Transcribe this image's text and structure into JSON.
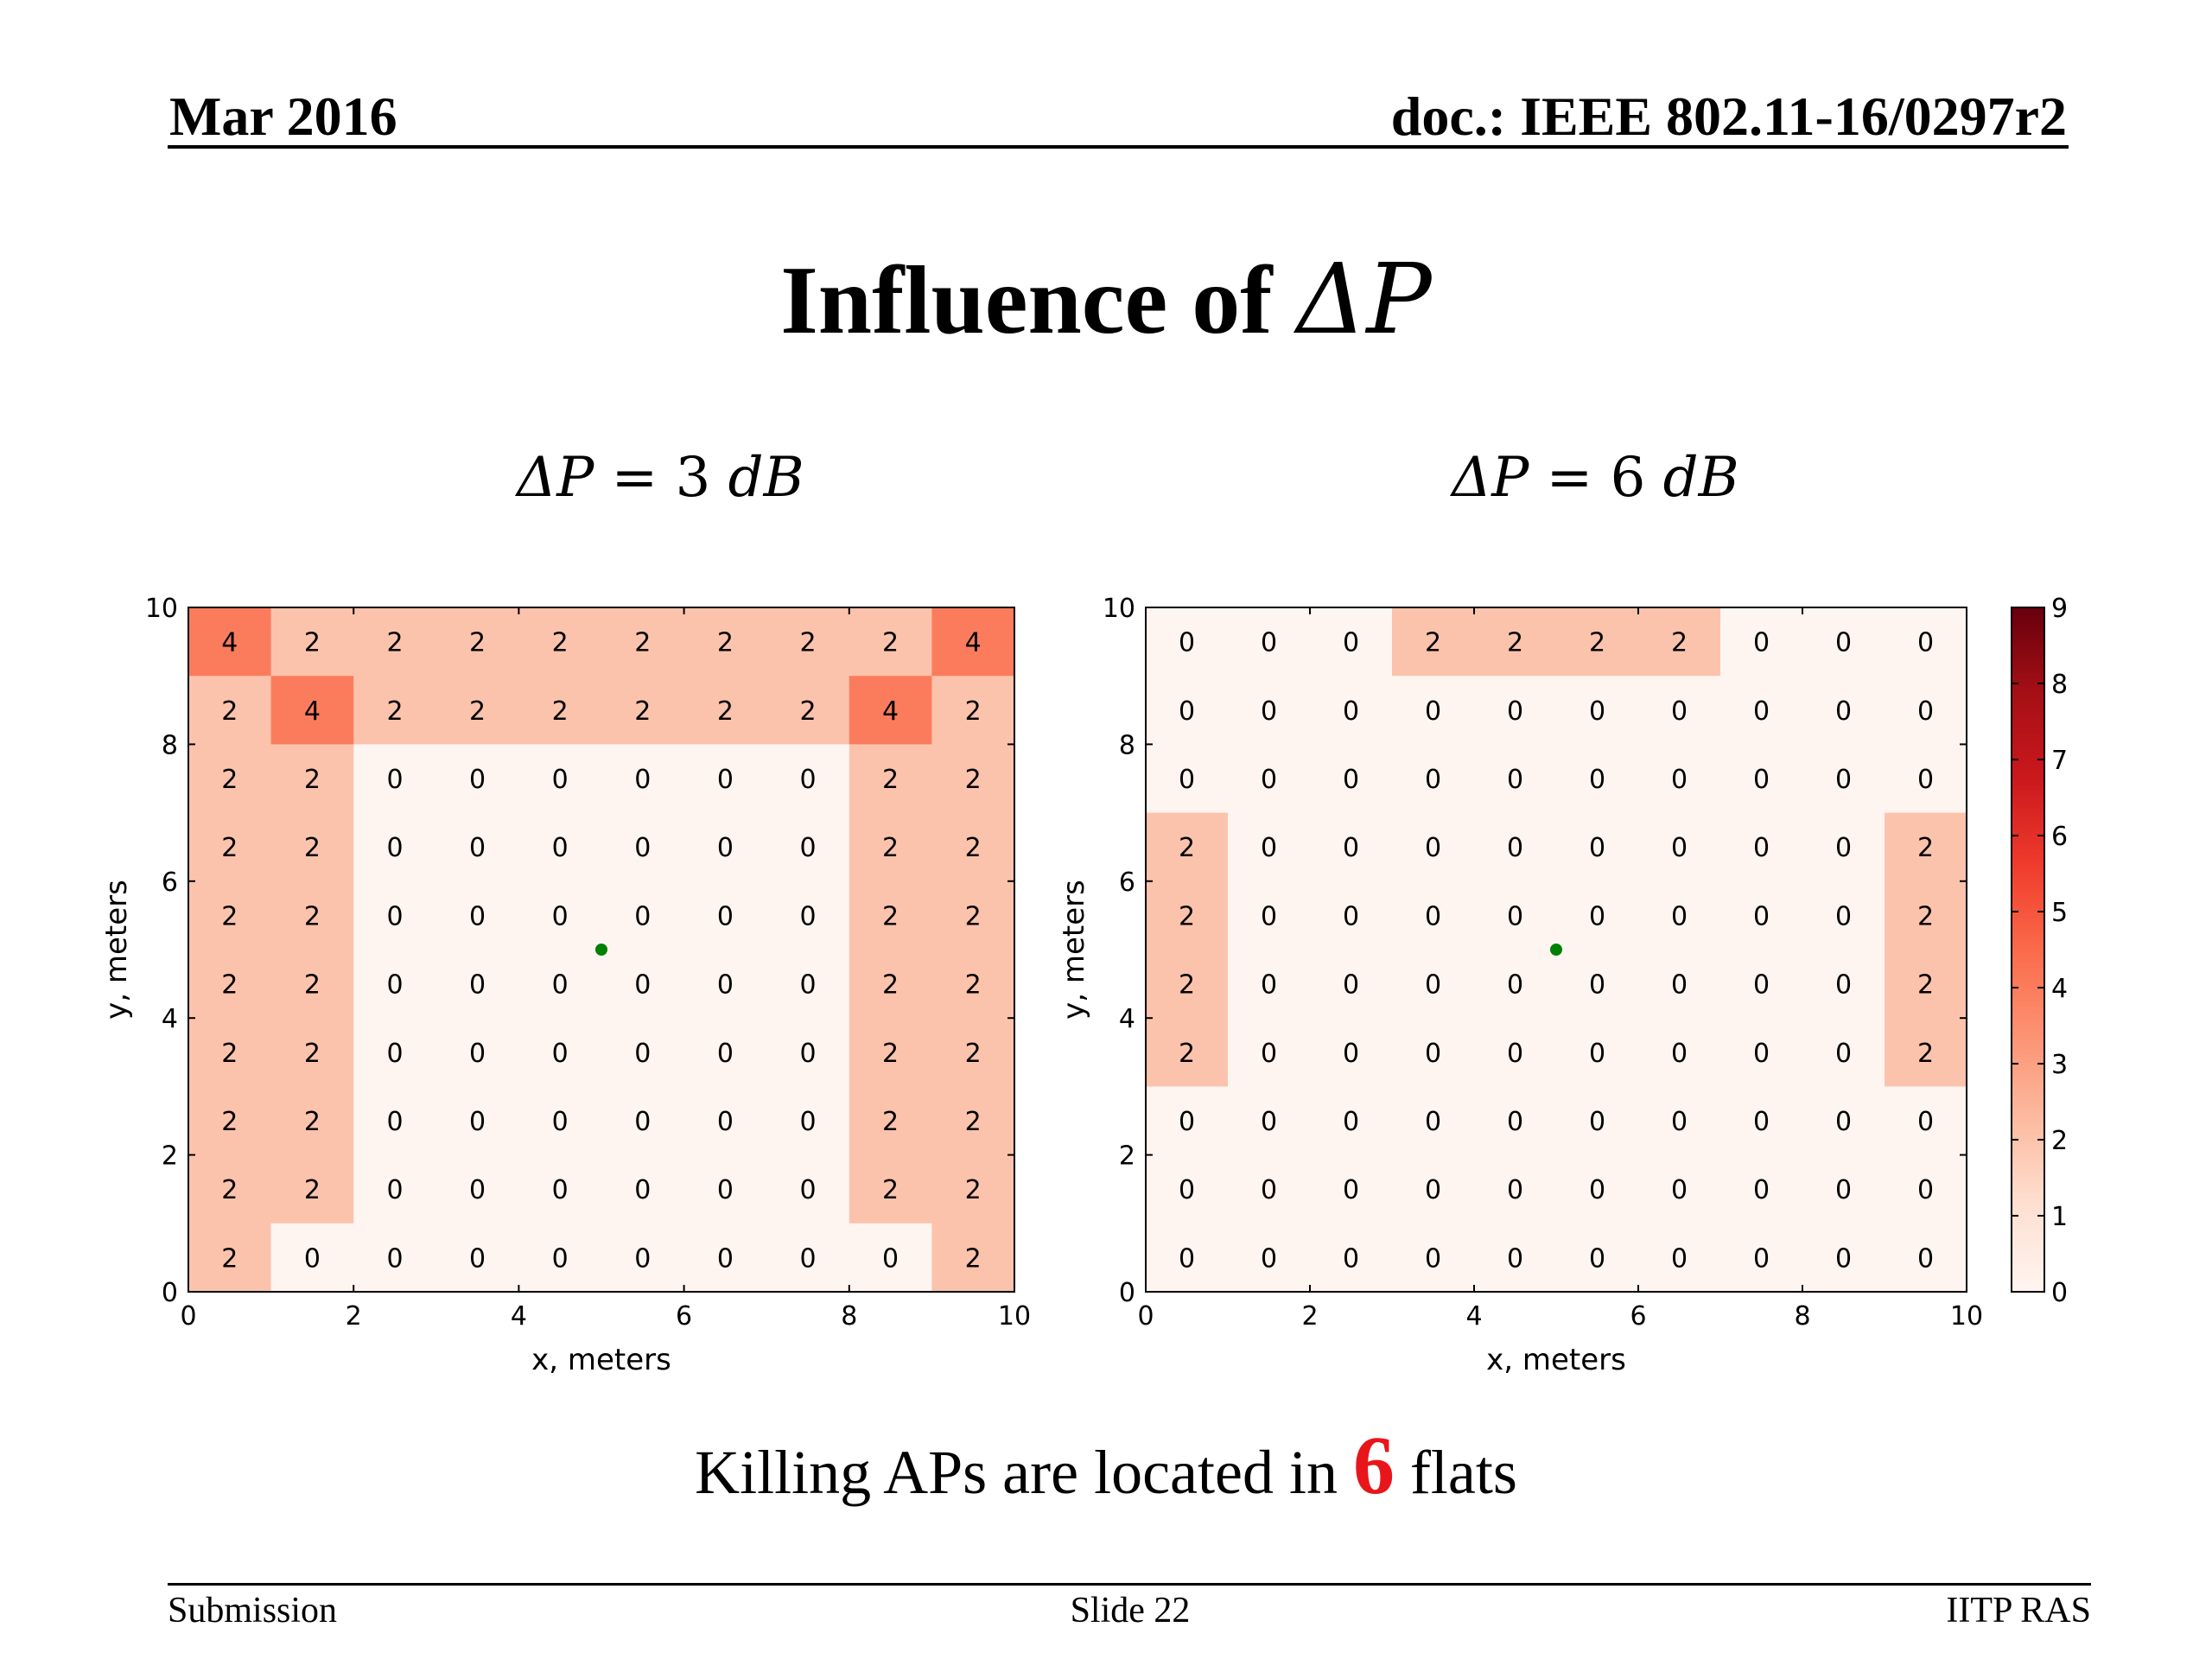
{
  "header": {
    "date": "Mar 2016",
    "doc": "doc.: IEEE 802.11-16/0297r2"
  },
  "title": {
    "text": "Influence of ",
    "symbol": "ΔP"
  },
  "subtitles": [
    {
      "lhs": "ΔP",
      "eq": " = 3 ",
      "unit": "dB"
    },
    {
      "lhs": "ΔP",
      "eq": " = 6 ",
      "unit": "dB"
    }
  ],
  "caption": {
    "before": "Killing APs are located in ",
    "highlight": "6",
    "after": " flats"
  },
  "footer": {
    "left": "Submission",
    "center": "Slide 22",
    "right": "IITP RAS"
  },
  "colors": {
    "highlight": "#e8161b",
    "ap_marker": "#008000"
  },
  "chart_data": [
    {
      "type": "heatmap",
      "title": "ΔP = 3 dB",
      "xlabel": "x, meters",
      "ylabel": "y, meters",
      "xlim": [
        0,
        10
      ],
      "ylim": [
        0,
        10
      ],
      "xticks": [
        0,
        2,
        4,
        6,
        8,
        10
      ],
      "yticks": [
        0,
        2,
        4,
        6,
        8,
        10
      ],
      "marker": {
        "x": 5,
        "y": 5
      },
      "rows_top_to_bottom": [
        [
          4,
          2,
          2,
          2,
          2,
          2,
          2,
          2,
          2,
          4
        ],
        [
          2,
          4,
          2,
          2,
          2,
          2,
          2,
          2,
          4,
          2
        ],
        [
          2,
          2,
          0,
          0,
          0,
          0,
          0,
          0,
          2,
          2
        ],
        [
          2,
          2,
          0,
          0,
          0,
          0,
          0,
          0,
          2,
          2
        ],
        [
          2,
          2,
          0,
          0,
          0,
          0,
          0,
          0,
          2,
          2
        ],
        [
          2,
          2,
          0,
          0,
          0,
          0,
          0,
          0,
          2,
          2
        ],
        [
          2,
          2,
          0,
          0,
          0,
          0,
          0,
          0,
          2,
          2
        ],
        [
          2,
          2,
          0,
          0,
          0,
          0,
          0,
          0,
          2,
          2
        ],
        [
          2,
          2,
          0,
          0,
          0,
          0,
          0,
          0,
          2,
          2
        ],
        [
          2,
          0,
          0,
          0,
          0,
          0,
          0,
          0,
          0,
          2
        ]
      ]
    },
    {
      "type": "heatmap",
      "title": "ΔP = 6 dB",
      "xlabel": "x, meters",
      "ylabel": "y, meters",
      "xlim": [
        0,
        10
      ],
      "ylim": [
        0,
        10
      ],
      "xticks": [
        0,
        2,
        4,
        6,
        8,
        10
      ],
      "yticks": [
        0,
        2,
        4,
        6,
        8,
        10
      ],
      "marker": {
        "x": 5,
        "y": 5
      },
      "rows_top_to_bottom": [
        [
          0,
          0,
          0,
          2,
          2,
          2,
          2,
          0,
          0,
          0
        ],
        [
          0,
          0,
          0,
          0,
          0,
          0,
          0,
          0,
          0,
          0
        ],
        [
          0,
          0,
          0,
          0,
          0,
          0,
          0,
          0,
          0,
          0
        ],
        [
          2,
          0,
          0,
          0,
          0,
          0,
          0,
          0,
          0,
          2
        ],
        [
          2,
          0,
          0,
          0,
          0,
          0,
          0,
          0,
          0,
          2
        ],
        [
          2,
          0,
          0,
          0,
          0,
          0,
          0,
          0,
          0,
          2
        ],
        [
          2,
          0,
          0,
          0,
          0,
          0,
          0,
          0,
          0,
          2
        ],
        [
          0,
          0,
          0,
          0,
          0,
          0,
          0,
          0,
          0,
          0
        ],
        [
          0,
          0,
          0,
          0,
          0,
          0,
          0,
          0,
          0,
          0
        ],
        [
          0,
          0,
          0,
          0,
          0,
          0,
          0,
          0,
          0,
          0
        ]
      ]
    }
  ],
  "colorbar": {
    "min": 0,
    "max": 9,
    "ticks": [
      0,
      1,
      2,
      3,
      4,
      5,
      6,
      7,
      8,
      9
    ],
    "colormap": "Reds"
  }
}
